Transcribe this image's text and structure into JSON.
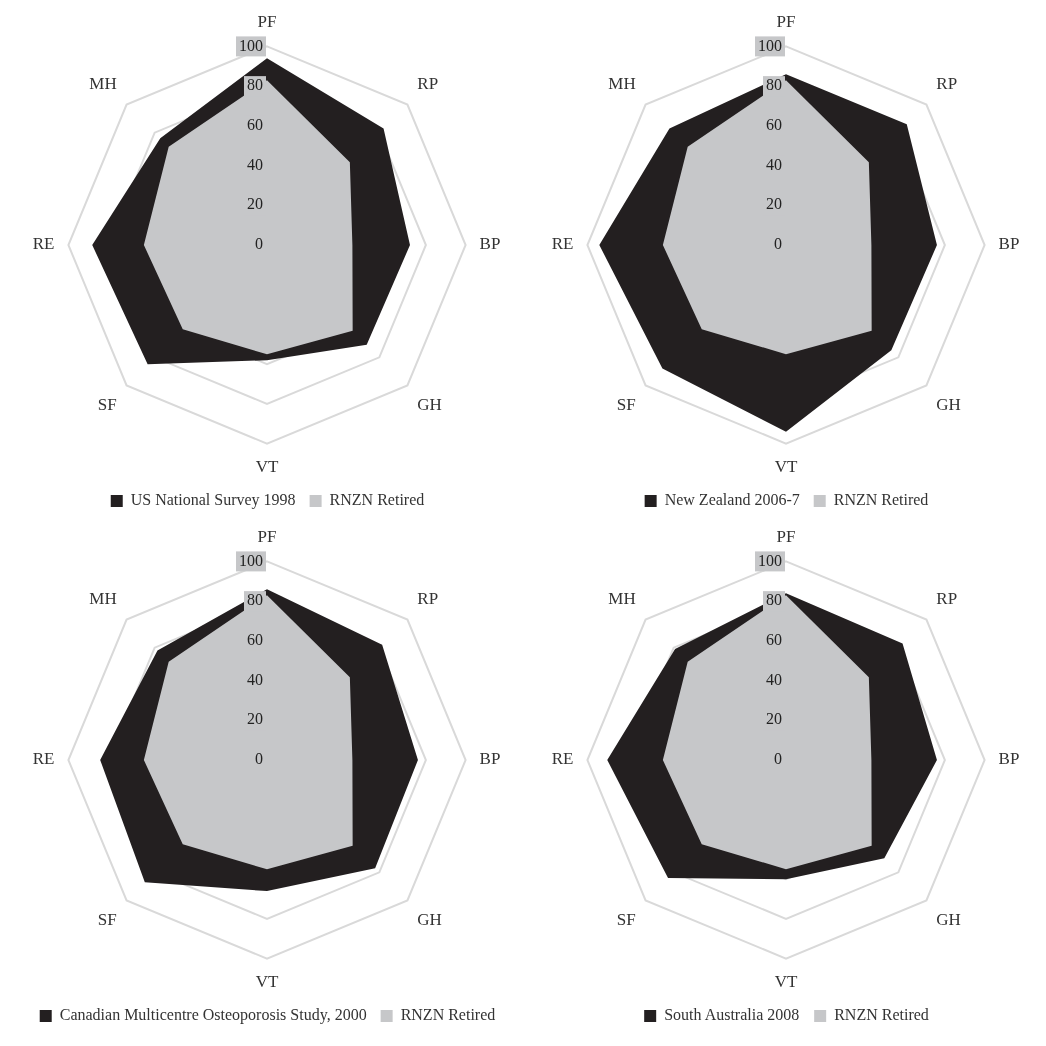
{
  "chart_data": [
    {
      "type": "radar",
      "categories": [
        "PF",
        "RP",
        "BP",
        "GH",
        "VT",
        "SF",
        "RE",
        "MH"
      ],
      "ylim": [
        0,
        100
      ],
      "yticks": [
        0,
        20,
        40,
        60,
        80,
        100
      ],
      "grid": true,
      "legend": "bottom",
      "series": [
        {
          "name": "US National Survey 1998",
          "color": "#231f20",
          "values": [
            94,
            83,
            72,
            71,
            58,
            85,
            88,
            76
          ]
        },
        {
          "name": "RNZN Retired",
          "color": "#c6c7c9",
          "values": [
            83,
            59,
            43,
            61,
            55,
            60,
            62,
            70
          ]
        }
      ]
    },
    {
      "type": "radar",
      "categories": [
        "PF",
        "RP",
        "BP",
        "GH",
        "VT",
        "SF",
        "RE",
        "MH"
      ],
      "ylim": [
        0,
        100
      ],
      "yticks": [
        0,
        20,
        40,
        60,
        80,
        100
      ],
      "grid": true,
      "legend": "bottom",
      "series": [
        {
          "name": "New Zealand 2006-7",
          "color": "#231f20",
          "values": [
            86,
            86,
            76,
            75,
            94,
            88,
            94,
            83
          ]
        },
        {
          "name": "RNZN Retired",
          "color": "#c6c7c9",
          "values": [
            83,
            59,
            43,
            61,
            55,
            60,
            62,
            70
          ]
        }
      ]
    },
    {
      "type": "radar",
      "categories": [
        "PF",
        "RP",
        "BP",
        "GH",
        "VT",
        "SF",
        "RE",
        "MH"
      ],
      "ylim": [
        0,
        100
      ],
      "yticks": [
        0,
        20,
        40,
        60,
        80,
        100
      ],
      "grid": true,
      "legend": "bottom",
      "series": [
        {
          "name": "Canadian Multicentre Osteoporosis Study, 2000",
          "color": "#231f20",
          "values": [
            86,
            82,
            76,
            77,
            66,
            87,
            84,
            78
          ]
        },
        {
          "name": "RNZN Retired",
          "color": "#c6c7c9",
          "values": [
            83,
            59,
            43,
            61,
            55,
            60,
            62,
            70
          ]
        }
      ]
    },
    {
      "type": "radar",
      "categories": [
        "PF",
        "RP",
        "BP",
        "GH",
        "VT",
        "SF",
        "RE",
        "MH"
      ],
      "ylim": [
        0,
        100
      ],
      "yticks": [
        0,
        20,
        40,
        60,
        80,
        100
      ],
      "grid": true,
      "legend": "bottom",
      "series": [
        {
          "name": "South Australia 2008",
          "color": "#231f20",
          "values": [
            84,
            83,
            76,
            70,
            60,
            84,
            90,
            79
          ]
        },
        {
          "name": "RNZN Retired",
          "color": "#c6c7c9",
          "values": [
            83,
            59,
            43,
            61,
            55,
            60,
            62,
            70
          ]
        }
      ]
    }
  ]
}
